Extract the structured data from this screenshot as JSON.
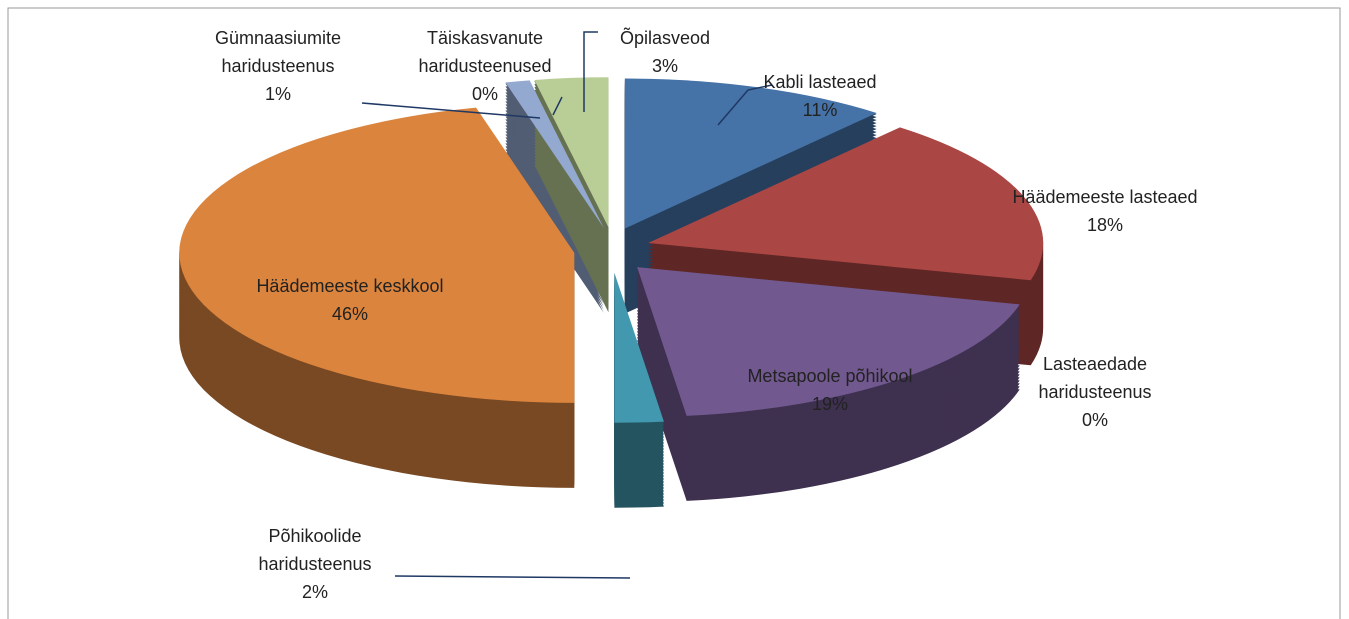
{
  "chart_data": {
    "type": "pie",
    "categories": [
      "Kabli lasteaed",
      "Häädemeeste lasteaed",
      "Lasteaedade haridusteenus",
      "Metsapoole põhikool",
      "Põhikoolide haridusteenus",
      "Häädemeeste keskkool",
      "Gümnaasiumite haridusteenus",
      "Täiskasvanute haridusteenused",
      "Õpilasveod"
    ],
    "values": [
      11,
      18,
      0,
      19,
      2,
      46,
      1,
      0,
      3
    ],
    "value_labels": [
      "11%",
      "18%",
      "0%",
      "19%",
      "2%",
      "46%",
      "1%",
      "0%",
      "3%"
    ],
    "colors": [
      "#4572a7",
      "#aa4643",
      "#89a54e",
      "#71588f",
      "#4198af",
      "#db843d",
      "#93a9cf",
      "#d19392",
      "#b9cd96"
    ]
  }
}
